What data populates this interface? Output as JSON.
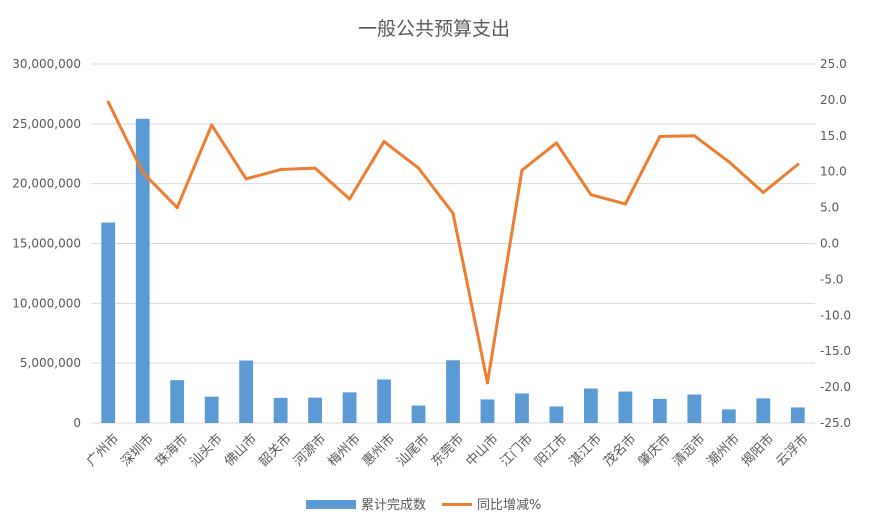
{
  "chart_data": {
    "type": "bar",
    "title": "一般公共预算支出",
    "categories": [
      "广州市",
      "深圳市",
      "珠海市",
      "汕头市",
      "佛山市",
      "韶关市",
      "河源市",
      "梅州市",
      "惠州市",
      "汕尾市",
      "东莞市",
      "中山市",
      "江门市",
      "阳江市",
      "湛江市",
      "茂名市",
      "肇庆市",
      "清远市",
      "潮州市",
      "揭阳市",
      "云浮市"
    ],
    "series": [
      {
        "name": "累计完成数",
        "type": "bar",
        "axis": "left",
        "color": "#5b9bd5",
        "values": [
          16750000,
          25420000,
          3580000,
          2200000,
          5220000,
          2100000,
          2120000,
          2560000,
          3640000,
          1460000,
          5240000,
          1970000,
          2470000,
          1380000,
          2880000,
          2630000,
          2020000,
          2380000,
          1140000,
          2060000,
          1300000
        ]
      },
      {
        "name": "同比增减%",
        "type": "line",
        "axis": "right",
        "color": "#ed7d31",
        "values": [
          19.7,
          9.9,
          5.0,
          16.5,
          9.0,
          10.3,
          10.5,
          6.2,
          14.2,
          10.5,
          4.2,
          -19.4,
          10.2,
          14.0,
          6.8,
          5.5,
          14.9,
          15.0,
          11.4,
          7.1,
          11.0
        ]
      }
    ],
    "y_left": {
      "min": 0,
      "max": 30000000,
      "step": 5000000,
      "ticks": [
        "0",
        "5,000,000",
        "10,000,000",
        "15,000,000",
        "20,000,000",
        "25,000,000",
        "30,000,000"
      ]
    },
    "y_right": {
      "min": -25,
      "max": 25,
      "step": 5,
      "ticks": [
        "-25.0",
        "-20.0",
        "-15.0",
        "-10.0",
        "-5.0",
        "0.0",
        "5.0",
        "10.0",
        "15.0",
        "20.0",
        "25.0"
      ]
    },
    "grid": true,
    "legend_position": "bottom"
  }
}
